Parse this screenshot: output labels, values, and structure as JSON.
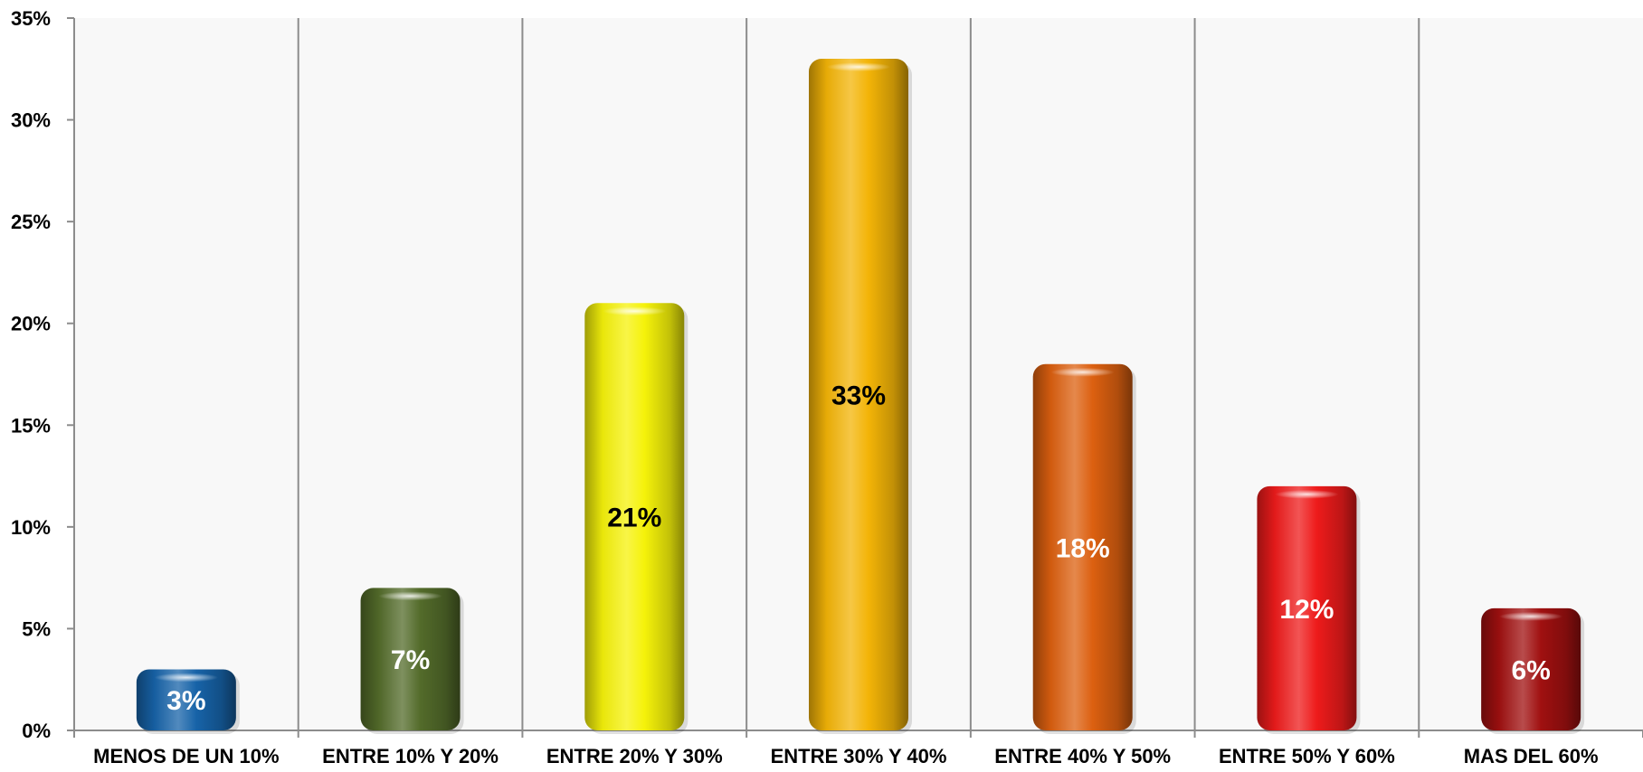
{
  "chart_data": {
    "type": "bar",
    "categories": [
      "MENOS DE UN 10%",
      "ENTRE 10% Y 20%",
      "ENTRE 20% Y 30%",
      "ENTRE 30% Y 40%",
      "ENTRE 40% Y 50%",
      "ENTRE 50% Y 60%",
      "MAS DEL 60%"
    ],
    "values": [
      3,
      7,
      21,
      33,
      18,
      12,
      6
    ],
    "data_labels": [
      "3%",
      "7%",
      "21%",
      "33%",
      "18%",
      "12%",
      "6%"
    ],
    "title": "",
    "xlabel": "",
    "ylabel": "",
    "ylim": [
      0,
      35
    ],
    "y_ticks": [
      0,
      5,
      10,
      15,
      20,
      25,
      30,
      35
    ],
    "y_tick_labels": [
      "0%",
      "5%",
      "10%",
      "15%",
      "20%",
      "25%",
      "30%",
      "35%"
    ],
    "grid": "vertical separators between categories",
    "legend": "none",
    "bar_colors": [
      "#1763a8",
      "#536b2a",
      "#f5f20a",
      "#f3b407",
      "#dc6010",
      "#ee1b1b",
      "#a01010"
    ],
    "label_colors": [
      "#ffffff",
      "#ffffff",
      "#000000",
      "#000000",
      "#ffffff",
      "#ffffff",
      "#ffffff"
    ]
  }
}
